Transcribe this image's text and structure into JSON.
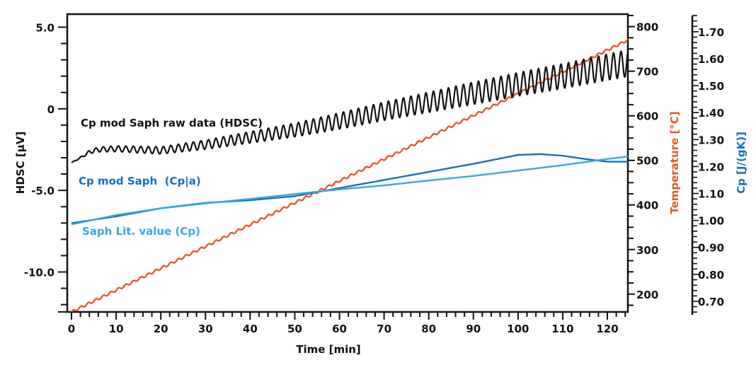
{
  "chart_data": {
    "type": "line",
    "title": "",
    "xlabel": "Time [min]",
    "xlim": [
      0,
      124.6
    ],
    "xticks": [
      0,
      10,
      20,
      30,
      40,
      50,
      60,
      70,
      80,
      90,
      100,
      110,
      120
    ],
    "xtick_labels": [
      "0",
      "10",
      "20",
      "30",
      "40",
      "50",
      "60",
      "70",
      "80",
      "90",
      "100",
      "110",
      "120"
    ],
    "axes": {
      "left": {
        "label": "HDSC [µV]",
        "range": [
          -12.45,
          5.8
        ],
        "ticks": [
          5.0,
          0,
          -5.0,
          -10.0
        ],
        "tick_labels": [
          "5.0",
          "0",
          "-5.0",
          "-10.0"
        ],
        "color": "#111111"
      },
      "right1": {
        "label": "Temperature [°C]",
        "range": [
          160,
          828
        ],
        "ticks": [
          800,
          700,
          600,
          500,
          400,
          300,
          200
        ],
        "tick_labels": [
          "800",
          "700",
          "600",
          "500",
          "400",
          "300",
          "200"
        ],
        "color": "#e05a2b"
      },
      "right2": {
        "label": "Cp [J/(gK)]",
        "range": [
          0.65,
          1.76
        ],
        "ticks": [
          1.7,
          1.6,
          1.5,
          1.4,
          1.3,
          1.2,
          1.1,
          1.0,
          0.9,
          0.8,
          0.7
        ],
        "tick_labels": [
          "1.70",
          "1.60",
          "1.50",
          "1.40",
          "1.30",
          "1.20",
          "1.10",
          "1.00",
          "0.90",
          "0.80",
          "0.70"
        ],
        "color": "#1a6fb5"
      }
    },
    "grid": false,
    "legend": "inline labels",
    "series": [
      {
        "name": "Temperature",
        "axis": "right1",
        "color": "#e05a2b",
        "label": "",
        "x": [
          0,
          124.6
        ],
        "values": [
          160,
          770
        ],
        "modulation_amplitude": 2.5,
        "modulation_period_min": 1.68
      },
      {
        "name": "Cp mod Saph raw data (HDSC)",
        "axis": "left",
        "color": "#111111",
        "label": "Cp mod Saph raw data (HDSC)",
        "x": [
          0,
          2,
          4,
          6,
          10,
          20,
          30,
          40,
          50,
          60,
          70,
          80,
          90,
          100,
          110,
          120,
          124.6
        ],
        "values": [
          -3.3,
          -3.0,
          -2.65,
          -2.5,
          -2.45,
          -2.55,
          -2.2,
          -1.75,
          -1.3,
          -0.75,
          -0.15,
          0.4,
          0.95,
          1.5,
          2.0,
          2.55,
          2.8
        ],
        "oscillation_amplitude": [
          0.0,
          0.05,
          0.1,
          0.15,
          0.18,
          0.22,
          0.28,
          0.35,
          0.42,
          0.5,
          0.56,
          0.62,
          0.68,
          0.72,
          0.76,
          0.8,
          0.82
        ],
        "oscillation_period_min": 1.68
      },
      {
        "name": "Cp mod Saph (Cp|a)",
        "axis": "right2",
        "color": "#1a6fb5",
        "label": "Cp mod Saph  (Cp|a)",
        "x": [
          0,
          10,
          20,
          30,
          40,
          50,
          60,
          70,
          80,
          90,
          100,
          105,
          110,
          115,
          120,
          124.6
        ],
        "values": [
          0.99,
          1.015,
          1.045,
          1.065,
          1.075,
          1.09,
          1.12,
          1.15,
          1.18,
          1.21,
          1.243,
          1.246,
          1.24,
          1.228,
          1.218,
          1.218
        ]
      },
      {
        "name": "Saph Lit. value (Cp)",
        "axis": "right2",
        "color": "#3aa8dc",
        "label": "Saph Lit. value (Cp)",
        "x": [
          0,
          10,
          20,
          30,
          40,
          50,
          60,
          70,
          80,
          90,
          100,
          110,
          120,
          124.6
        ],
        "values": [
          0.985,
          1.02,
          1.045,
          1.063,
          1.08,
          1.098,
          1.115,
          1.13,
          1.148,
          1.165,
          1.185,
          1.205,
          1.228,
          1.237
        ]
      }
    ]
  }
}
